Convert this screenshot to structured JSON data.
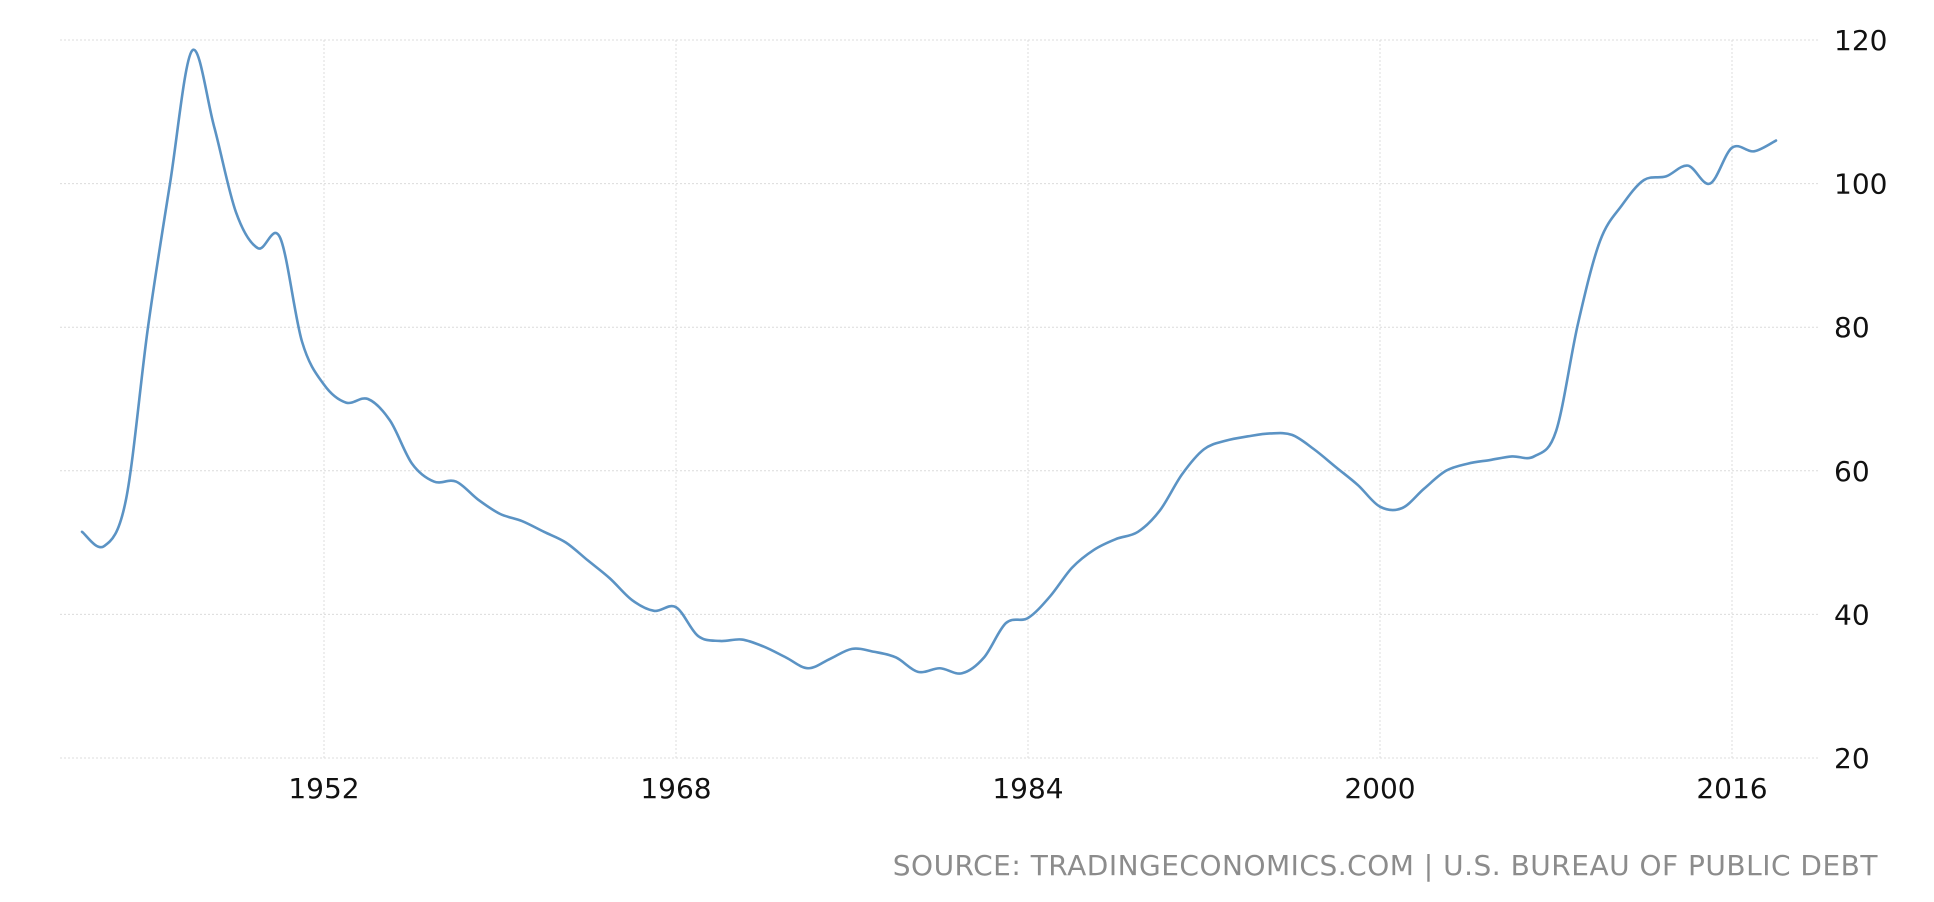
{
  "colors": {
    "series": "#5b93c4",
    "grid": "#dcdcdc",
    "tick_text": "#111111",
    "source_text": "#8c8c8c",
    "background": "#ffffff"
  },
  "source": "SOURCE: TRADINGECONOMICS.COM | U.S. BUREAU OF PUBLIC DEBT",
  "chart_data": {
    "type": "line",
    "title": "",
    "xlabel": "",
    "ylabel": "",
    "grid": true,
    "y_axis_side": "right",
    "xlim": [
      1940,
      2020
    ],
    "ylim": [
      20,
      120
    ],
    "x_ticks": [
      1952,
      1968,
      1984,
      2000,
      2016
    ],
    "y_ticks": [
      20,
      40,
      60,
      80,
      100,
      120
    ],
    "series": [
      {
        "x": [
          1941,
          1942,
          1943,
          1944,
          1945,
          1946,
          1947,
          1948,
          1949,
          1950,
          1951,
          1952,
          1953,
          1954,
          1955,
          1956,
          1957,
          1958,
          1959,
          1960,
          1961,
          1962,
          1963,
          1964,
          1965,
          1966,
          1967,
          1968,
          1969,
          1970,
          1971,
          1972,
          1973,
          1974,
          1975,
          1976,
          1977,
          1978,
          1979,
          1980,
          1981,
          1982,
          1983,
          1984,
          1985,
          1986,
          1987,
          1988,
          1989,
          1990,
          1991,
          1992,
          1993,
          1994,
          1995,
          1996,
          1997,
          1998,
          1999,
          2000,
          2001,
          2002,
          2003,
          2004,
          2005,
          2006,
          2007,
          2008,
          2009,
          2010,
          2011,
          2012,
          2013,
          2014,
          2015,
          2016,
          2017,
          2018
        ],
        "values": [
          51.5,
          49.5,
          56,
          80,
          100,
          118.5,
          108,
          96,
          91,
          92.5,
          78,
          72,
          69.5,
          70,
          67,
          61,
          58.5,
          58.5,
          56,
          54,
          53,
          51.5,
          50,
          47.5,
          45,
          42,
          40.5,
          41,
          37,
          36.3,
          36.5,
          35.5,
          34,
          32.5,
          33.8,
          35.2,
          34.8,
          34,
          32,
          32.5,
          31.8,
          34,
          38.8,
          39.5,
          42.5,
          46.5,
          49,
          50.5,
          51.5,
          54.5,
          59.5,
          63,
          64.2,
          64.8,
          65.2,
          65,
          63,
          60.5,
          58,
          55,
          54.8,
          57.5,
          60,
          61,
          61.5,
          62,
          62,
          65.5,
          80.5,
          92,
          97,
          100.5,
          101,
          102.5,
          100,
          105,
          104.5,
          106
        ]
      }
    ]
  }
}
